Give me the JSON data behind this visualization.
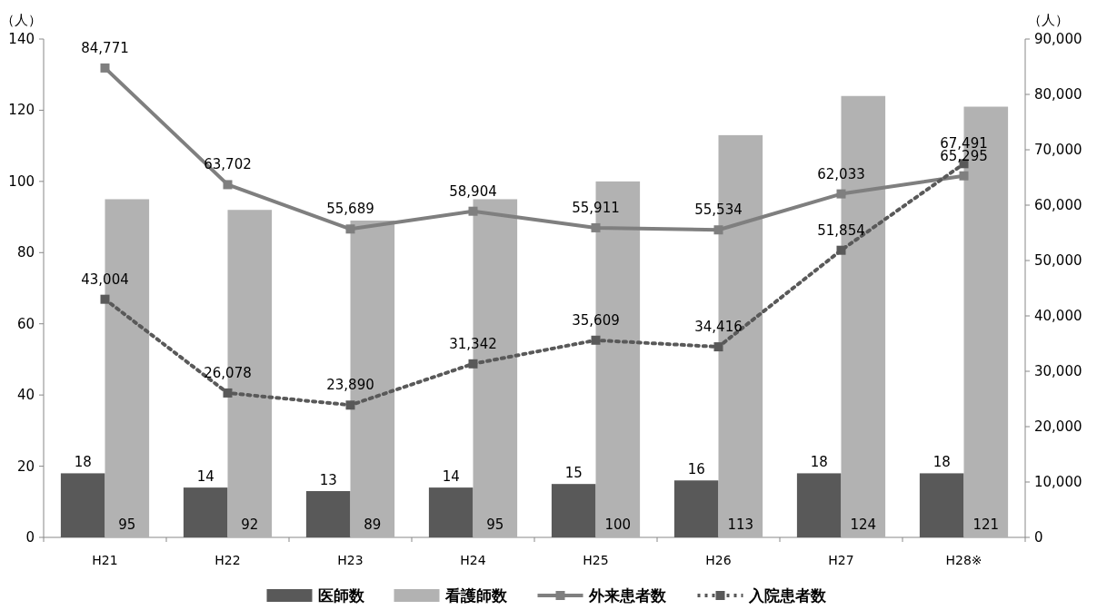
{
  "chart_data": {
    "type": "bar",
    "categories": [
      "H21",
      "H22",
      "H23",
      "H24",
      "H25",
      "H26",
      "H27",
      "H28※"
    ],
    "ylabel": "（人）",
    "y2label": "（人）",
    "ylim": [
      0,
      140
    ],
    "yticks": [
      0,
      20,
      40,
      60,
      80,
      100,
      120,
      140
    ],
    "y2lim": [
      0,
      90000
    ],
    "y2ticks": [
      {
        "value": 0,
        "label": "0"
      },
      {
        "value": 10000,
        "label": "10,000"
      },
      {
        "value": 20000,
        "label": "20,000"
      },
      {
        "value": 30000,
        "label": "30,000"
      },
      {
        "value": 40000,
        "label": "40,000"
      },
      {
        "value": 50000,
        "label": "50,000"
      },
      {
        "value": 60000,
        "label": "60,000"
      },
      {
        "value": 70000,
        "label": "70,000"
      },
      {
        "value": 80000,
        "label": "80,000"
      },
      {
        "value": 90000,
        "label": "90,000"
      }
    ],
    "legend": "bottom",
    "grid": false,
    "series": [
      {
        "name": "医師数",
        "color": "#595959",
        "values": [
          18,
          14,
          13,
          14,
          15,
          16,
          18,
          18
        ],
        "value_labels": [
          "18",
          "14",
          "13",
          "14",
          "15",
          "16",
          "18",
          "18"
        ]
      },
      {
        "name": "看護師数",
        "color": "#b2b2b2",
        "values": [
          95,
          92,
          89,
          95,
          100,
          113,
          124,
          121
        ],
        "value_labels": [
          "95",
          "92",
          "89",
          "95",
          "100",
          "113",
          "124",
          "121"
        ]
      },
      {
        "name": "外来患者数",
        "type": "line",
        "axis": "y2",
        "color": "#7f7f7f",
        "marker": "square",
        "line_style": "solid",
        "values": [
          84771,
          63702,
          55689,
          58904,
          55911,
          55534,
          62033,
          65295
        ],
        "value_labels": [
          "84,771",
          "63,702",
          "55,689",
          "58,904",
          "55,911",
          "55,534",
          "62,033",
          "65,295"
        ]
      },
      {
        "name": "入院患者数",
        "type": "line",
        "axis": "y2",
        "color": "#595959",
        "marker": "square",
        "line_style": "dotted",
        "values": [
          43004,
          26078,
          23890,
          31342,
          35609,
          34416,
          51854,
          67491
        ],
        "value_labels": [
          "43,004",
          "26,078",
          "23,890",
          "31,342",
          "35,609",
          "34,416",
          "51,854",
          "67,491"
        ]
      }
    ]
  }
}
